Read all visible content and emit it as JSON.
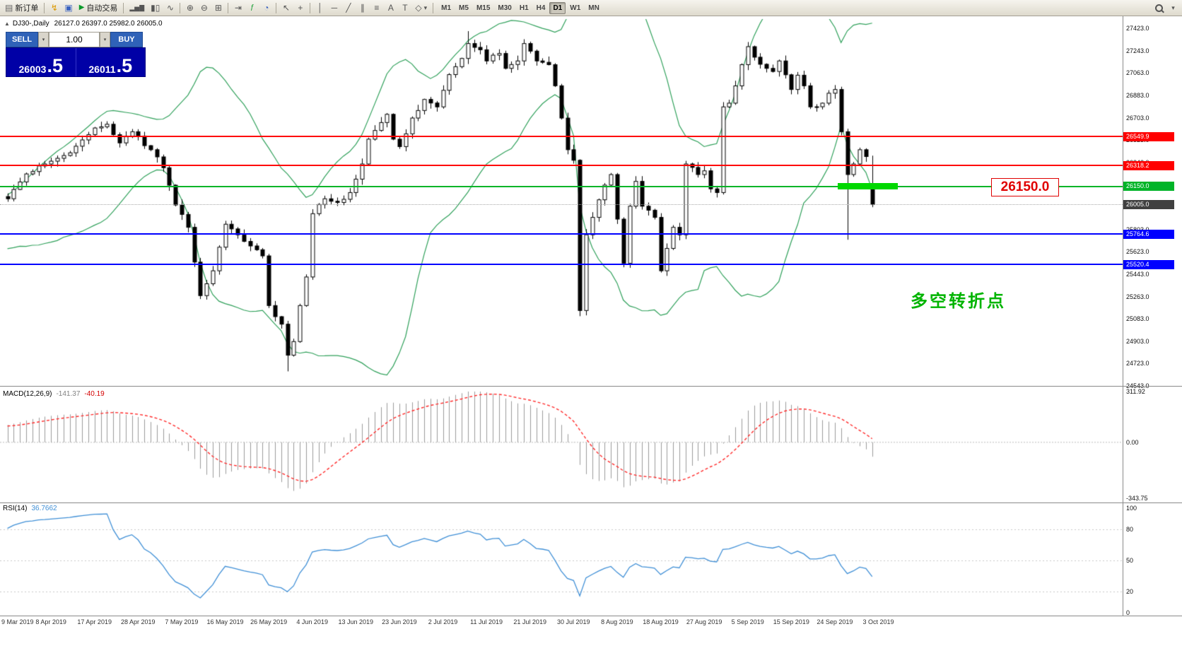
{
  "toolbar": {
    "new_order": "新订单",
    "autotrading": "自动交易",
    "timeframes": [
      "M1",
      "M5",
      "M15",
      "M30",
      "H1",
      "H4",
      "D1",
      "W1",
      "MN"
    ],
    "active_timeframe": "D1"
  },
  "icons": {
    "new_order": "▤",
    "lightning": "↯",
    "profile": "▣",
    "play": "▶",
    "bars": "▂▅▇",
    "candles": "▮▯",
    "line": "∿",
    "zoom_in": "⊕",
    "zoom_out": "⊖",
    "tile": "⊞",
    "autoscroll": "⇥",
    "indicators": "ƒ",
    "clock": "◔",
    "cursor": "↖",
    "crosshair": "+",
    "vline": "│",
    "hline": "─",
    "trendline": "╱",
    "channel": "∥",
    "fibo": "≡",
    "text": "A",
    "label": "T",
    "shapes": "◇",
    "chevron": "▾",
    "collapse": "▲"
  },
  "chart_header": {
    "symbol": "DJ30-,Daily",
    "ohlc": "26127.0 26397.0 25982.0 26005.0"
  },
  "trade_panel": {
    "sell_label": "SELL",
    "buy_label": "BUY",
    "volume": "1.00",
    "sell_price_big": "26003",
    "sell_price_sup": ".5",
    "buy_price_big": "26011",
    "buy_price_sup": ".5"
  },
  "price_axis": {
    "labels": [
      "27423.0",
      "27243.0",
      "27063.0",
      "26883.0",
      "26703.0",
      "26523.0",
      "26343.0",
      "26163.0",
      "25983.0",
      "25803.0",
      "25623.0",
      "25443.0",
      "25263.0",
      "25083.0",
      "24903.0",
      "24723.0",
      "24543.0"
    ]
  },
  "levels": [
    {
      "label": "26549.9",
      "price": 26549.9,
      "color": "#ff0000",
      "badge": "#ff0000",
      "style": "solid",
      "width": 2
    },
    {
      "label": "26318.2",
      "price": 26318.2,
      "color": "#ff0000",
      "badge": "#ff0000",
      "style": "solid",
      "width": 2
    },
    {
      "label": "26150.0",
      "price": 26150.0,
      "color": "#00b428",
      "badge": "#00b428",
      "style": "solid",
      "width": 2
    },
    {
      "label": "26005.0",
      "price": 26005.0,
      "color": "#a8a8a8",
      "badge": "#404040",
      "style": "dotted",
      "width": 1
    },
    {
      "label": "25764.6",
      "price": 25764.6,
      "color": "#0000ff",
      "badge": "#0000ff",
      "style": "solid",
      "width": 2
    },
    {
      "label": "25520.4",
      "price": 25520.4,
      "color": "#0000ff",
      "badge": "#0000ff",
      "style": "solid",
      "width": 2
    }
  ],
  "highlight": {
    "price": 26150.0,
    "color": "#00d800"
  },
  "callout": {
    "text": "26150.0",
    "color": "#e00000"
  },
  "annotation": {
    "text": "多空转折点",
    "color": "#00b400"
  },
  "macd": {
    "label": "MACD(12,26,9)",
    "value_main": "-141.37",
    "value_signal": "-40.19",
    "axis": [
      "311.92",
      "0.00",
      "-343.75"
    ]
  },
  "rsi": {
    "label": "RSI(14)",
    "value": "36.7662",
    "axis": [
      "100",
      "80",
      "50",
      "20",
      "0"
    ],
    "levels": [
      80,
      50,
      20
    ]
  },
  "dates": [
    "9 Mar 2019",
    "8 Apr 2019",
    "17 Apr 2019",
    "28 Apr 2019",
    "7 May 2019",
    "16 May 2019",
    "26 May 2019",
    "4 Jun 2019",
    "13 Jun 2019",
    "23 Jun 2019",
    "2 Jul 2019",
    "11 Jul 2019",
    "21 Jul 2019",
    "30 Jul 2019",
    "8 Aug 2019",
    "18 Aug 2019",
    "27 Aug 2019",
    "5 Sep 2019",
    "15 Sep 2019",
    "24 Sep 2019",
    "3 Oct 2019"
  ],
  "chart_data": {
    "type": "candlestick",
    "symbol": "DJ30-",
    "timeframe": "Daily",
    "last_bar": {
      "open": 26127.0,
      "high": 26397.0,
      "low": 25982.0,
      "close": 26005.0
    },
    "candles": 140,
    "ylim": [
      24543,
      27423
    ],
    "close_anchors": [
      [
        0,
        26050
      ],
      [
        3,
        26250
      ],
      [
        6,
        26330
      ],
      [
        10,
        26420
      ],
      [
        14,
        26620
      ],
      [
        16,
        26650
      ],
      [
        18,
        26500
      ],
      [
        20,
        26590
      ],
      [
        23,
        26445
      ],
      [
        25,
        26300
      ],
      [
        27,
        26000
      ],
      [
        29,
        25820
      ],
      [
        31,
        25270
      ],
      [
        33,
        25470
      ],
      [
        35,
        25845
      ],
      [
        37,
        25760
      ],
      [
        39,
        25670
      ],
      [
        41,
        25590
      ],
      [
        42,
        25190
      ],
      [
        44,
        25040
      ],
      [
        45,
        24790
      ],
      [
        46,
        24900
      ],
      [
        47,
        25190
      ],
      [
        48,
        25420
      ],
      [
        49,
        25930
      ],
      [
        51,
        26050
      ],
      [
        53,
        26020
      ],
      [
        55,
        26100
      ],
      [
        57,
        26330
      ],
      [
        58,
        26530
      ],
      [
        61,
        26730
      ],
      [
        62,
        26530
      ],
      [
        63,
        26470
      ],
      [
        65,
        26700
      ],
      [
        67,
        26850
      ],
      [
        69,
        26790
      ],
      [
        71,
        27050
      ],
      [
        73,
        27180
      ],
      [
        74,
        27300
      ],
      [
        76,
        27250
      ],
      [
        77,
        27160
      ],
      [
        79,
        27220
      ],
      [
        80,
        27100
      ],
      [
        82,
        27160
      ],
      [
        83,
        27300
      ],
      [
        85,
        27160
      ],
      [
        87,
        27130
      ],
      [
        88,
        26960
      ],
      [
        89,
        26700
      ],
      [
        90,
        26445
      ],
      [
        91,
        26360
      ],
      [
        92,
        25150
      ],
      [
        93,
        25760
      ],
      [
        94,
        25900
      ],
      [
        96,
        26160
      ],
      [
        97,
        26245
      ],
      [
        99,
        25530
      ],
      [
        100,
        25990
      ],
      [
        101,
        26190
      ],
      [
        102,
        25990
      ],
      [
        104,
        25900
      ],
      [
        105,
        25470
      ],
      [
        107,
        25820
      ],
      [
        108,
        25760
      ],
      [
        109,
        26330
      ],
      [
        111,
        26245
      ],
      [
        112,
        26275
      ],
      [
        113,
        26130
      ],
      [
        114,
        26100
      ],
      [
        115,
        26790
      ],
      [
        116,
        26820
      ],
      [
        118,
        27130
      ],
      [
        119,
        27275
      ],
      [
        120,
        27190
      ],
      [
        122,
        27100
      ],
      [
        123,
        27075
      ],
      [
        124,
        27160
      ],
      [
        126,
        26930
      ],
      [
        127,
        27045
      ],
      [
        128,
        26960
      ],
      [
        129,
        26790
      ],
      [
        131,
        26820
      ],
      [
        132,
        26900
      ],
      [
        133,
        26930
      ],
      [
        134,
        26590
      ],
      [
        135,
        26245
      ],
      [
        136,
        26330
      ],
      [
        137,
        26445
      ],
      [
        138,
        26390
      ],
      [
        139,
        26005
      ]
    ],
    "low_overrides": [
      [
        45,
        24660
      ],
      [
        135,
        25720
      ]
    ],
    "high_overrides": [
      [
        74,
        27400
      ]
    ],
    "indicators": {
      "bollinger": {
        "period": 20,
        "deviation": 2
      },
      "macd": {
        "fast": 12,
        "slow": 26,
        "signal": 9
      },
      "rsi": {
        "period": 14
      }
    }
  }
}
